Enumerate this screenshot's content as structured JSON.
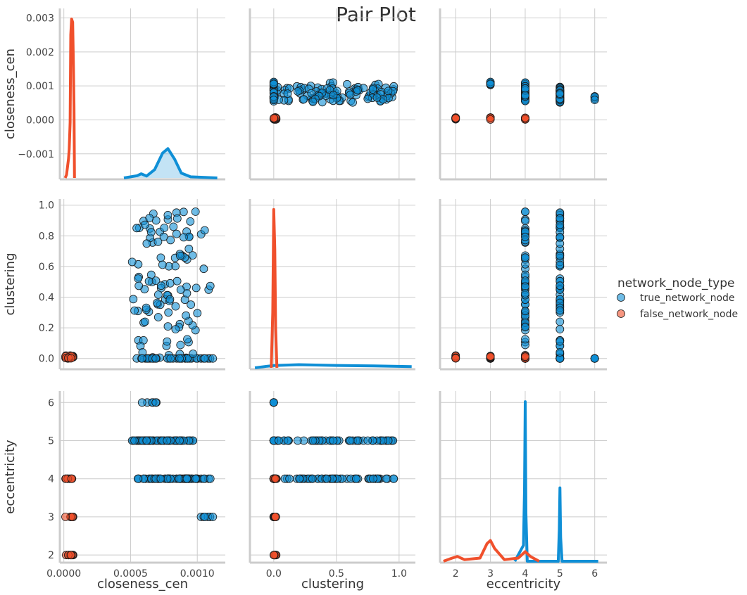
{
  "chart_data": {
    "type": "scatter",
    "title": "Pair Plot",
    "variables": [
      {
        "name": "closeness_cen",
        "ticks": [
          -0.001,
          0.0,
          0.001,
          0.002,
          0.003
        ],
        "tick_labels": [
          "−0.001",
          "0.000",
          "0.001",
          "0.002",
          "0.003"
        ],
        "xticks": [
          0.0,
          0.0005,
          0.001
        ],
        "xtick_labels": [
          "0.0000",
          "0.0005",
          "0.0010"
        ],
        "xlim": [
          -3e-05,
          0.00121
        ],
        "ylim": [
          -0.00175,
          0.00328
        ]
      },
      {
        "name": "clustering",
        "ticks": [
          0.0,
          0.2,
          0.4,
          0.6,
          0.8,
          1.0
        ],
        "tick_labels": [
          "0.0",
          "0.2",
          "0.4",
          "0.6",
          "0.8",
          "1.0"
        ],
        "xticks": [
          0.0,
          0.5,
          1.0
        ],
        "xtick_labels": [
          "0.0",
          "0.5",
          "1.0"
        ],
        "xlim": [
          -0.19,
          1.13
        ],
        "ylim": [
          -0.07,
          1.04
        ]
      },
      {
        "name": "eccentricity",
        "ticks": [
          2,
          3,
          4,
          5,
          6
        ],
        "tick_labels": [
          "2",
          "3",
          "4",
          "5",
          "6"
        ],
        "xticks": [
          2,
          3,
          4,
          5,
          6
        ],
        "xtick_labels": [
          "2",
          "3",
          "4",
          "5",
          "6"
        ],
        "xlim": [
          1.55,
          6.35
        ],
        "ylim": [
          1.8,
          6.3
        ]
      }
    ],
    "legend": {
      "title": "network_node_type",
      "placement": "right",
      "entries": [
        {
          "label": "true_network_node",
          "color": "#0f8fd6"
        },
        {
          "label": "false_network_node",
          "color": "#f0502c"
        }
      ]
    },
    "grid": true,
    "series": [
      {
        "name": "true_network_node",
        "color": "#0f8fd6",
        "clusters": [
          {
            "closeness_cen": [
              0.00055,
              0.0011
            ],
            "clustering": [
              0.0,
              0.96
            ],
            "eccentricity": 4
          },
          {
            "closeness_cen": [
              0.0005,
              0.00098
            ],
            "clustering": [
              0.0,
              0.96
            ],
            "eccentricity": 5
          },
          {
            "closeness_cen": [
              0.00058,
              0.00072
            ],
            "clustering": [
              0.0,
              0.0
            ],
            "eccentricity": 6
          },
          {
            "closeness_cen": [
              0.001,
              0.00112
            ],
            "clustering": [
              0.0,
              0.0
            ],
            "eccentricity": 3
          }
        ],
        "kde_closeness_cen": [
          [
            0.00045,
            0.0
          ],
          [
            0.00055,
            0.06
          ],
          [
            0.00058,
            0.11
          ],
          [
            0.00062,
            0.05
          ],
          [
            0.00068,
            0.22
          ],
          [
            0.00074,
            0.66
          ],
          [
            0.00078,
            0.78
          ],
          [
            0.00083,
            0.5
          ],
          [
            0.00088,
            0.13
          ],
          [
            0.00095,
            0.03
          ],
          [
            0.00115,
            0.0
          ]
        ],
        "kde_clustering": [
          [
            -0.15,
            0.0
          ],
          [
            -0.05,
            0.01
          ],
          [
            0.0,
            0.014
          ],
          [
            0.2,
            0.02
          ],
          [
            0.5,
            0.015
          ],
          [
            0.8,
            0.012
          ],
          [
            1.1,
            0.008
          ]
        ],
        "kde_eccentricity": [
          [
            3.7,
            0.0
          ],
          [
            3.95,
            0.1
          ],
          [
            3.98,
            0.45
          ],
          [
            4.0,
            1.0
          ],
          [
            4.02,
            0.3
          ],
          [
            4.06,
            0.0
          ],
          [
            4.5,
            0.0
          ],
          [
            4.95,
            0.0
          ],
          [
            4.98,
            0.2
          ],
          [
            5.0,
            0.46
          ],
          [
            5.02,
            0.15
          ],
          [
            5.06,
            0.0
          ],
          [
            6.1,
            0.0
          ]
        ]
      },
      {
        "name": "false_network_node",
        "color": "#f0502c",
        "clusters": [
          {
            "closeness_cen": [
              1e-05,
              7e-05
            ],
            "clustering": [
              0.0,
              0.02
            ],
            "eccentricity": 4
          },
          {
            "closeness_cen": [
              1e-05,
              7e-05
            ],
            "clustering": [
              0.0,
              0.02
            ],
            "eccentricity": 3
          },
          {
            "closeness_cen": [
              1e-05,
              7e-05
            ],
            "clustering": [
              0.0,
              0.02
            ],
            "eccentricity": 2
          }
        ],
        "kde_closeness_cen": [
          [
            1e-05,
            0.0
          ],
          [
            2e-05,
            0.02
          ],
          [
            3.5e-05,
            0.12
          ],
          [
            4e-05,
            0.18
          ],
          [
            4.7e-05,
            0.35
          ],
          [
            5.2e-05,
            0.9
          ],
          [
            5.8e-05,
            1.0
          ],
          [
            6.6e-05,
            0.98
          ],
          [
            7.2e-05,
            0.7
          ],
          [
            7.6e-05,
            0.45
          ],
          [
            8e-05,
            0.0
          ]
        ],
        "kde_clustering": [
          [
            -0.02,
            0.0
          ],
          [
            -0.008,
            0.35
          ],
          [
            0.0,
            1.0
          ],
          [
            0.008,
            0.75
          ],
          [
            0.015,
            0.25
          ],
          [
            0.025,
            0.0
          ]
        ],
        "kde_eccentricity": [
          [
            1.65,
            0.0
          ],
          [
            1.9,
            0.02
          ],
          [
            2.05,
            0.03
          ],
          [
            2.25,
            0.01
          ],
          [
            2.7,
            0.02
          ],
          [
            2.9,
            0.11
          ],
          [
            3.0,
            0.13
          ],
          [
            3.12,
            0.08
          ],
          [
            3.4,
            0.01
          ],
          [
            3.8,
            0.02
          ],
          [
            4.0,
            0.06
          ],
          [
            4.15,
            0.03
          ],
          [
            4.4,
            0.0
          ]
        ]
      }
    ]
  }
}
